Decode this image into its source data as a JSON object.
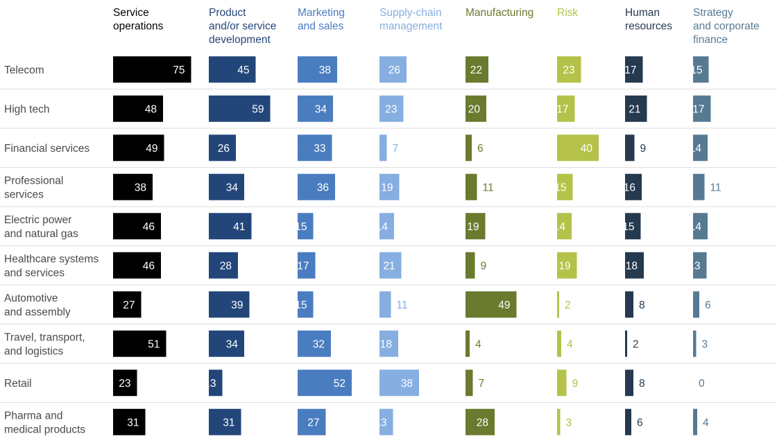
{
  "chart_data": {
    "type": "bar",
    "categories": [
      [
        "Telecom"
      ],
      [
        "High tech"
      ],
      [
        "Financial services"
      ],
      [
        "Professional",
        "services"
      ],
      [
        "Electric power",
        "and natural gas"
      ],
      [
        "Healthcare systems",
        "and services"
      ],
      [
        "Automotive",
        "and assembly"
      ],
      [
        "Travel, transport,",
        "and logistics"
      ],
      [
        "Retail"
      ],
      [
        "Pharma and",
        "medical products"
      ]
    ],
    "series": [
      {
        "name": [
          "Service",
          "operations"
        ],
        "color": "#000000",
        "label_color": "#000000",
        "values": [
          75,
          48,
          49,
          38,
          46,
          46,
          27,
          51,
          23,
          31
        ]
      },
      {
        "name": [
          "Product",
          "and/or service",
          "development"
        ],
        "color": "#23467a",
        "label_color": "#23467a",
        "values": [
          45,
          59,
          26,
          34,
          41,
          28,
          39,
          34,
          13,
          31
        ]
      },
      {
        "name": [
          "Marketing",
          "and sales"
        ],
        "color": "#4a7cc0",
        "label_color": "#4a7cc0",
        "values": [
          38,
          34,
          33,
          36,
          15,
          17,
          15,
          32,
          52,
          27
        ]
      },
      {
        "name": [
          "Supply-chain",
          "management"
        ],
        "color": "#86aee0",
        "label_color": "#86aee0",
        "values": [
          26,
          23,
          7,
          19,
          14,
          21,
          11,
          18,
          38,
          13
        ]
      },
      {
        "name": [
          "Manufacturing"
        ],
        "color": "#6a7a2e",
        "label_color": "#6a7a2e",
        "values": [
          22,
          20,
          6,
          11,
          19,
          9,
          49,
          4,
          7,
          28
        ]
      },
      {
        "name": [
          "Risk"
        ],
        "color": "#b4c24a",
        "label_color": "#b4c24a",
        "values": [
          23,
          17,
          40,
          15,
          14,
          19,
          2,
          4,
          9,
          3
        ]
      },
      {
        "name": [
          "Human",
          "resources"
        ],
        "color": "#25394f",
        "label_color": "#25394f",
        "values": [
          17,
          21,
          9,
          16,
          15,
          18,
          8,
          2,
          8,
          6
        ]
      },
      {
        "name": [
          "Strategy",
          "and corporate",
          "finance"
        ],
        "color": "#577a93",
        "label_color": "#577a93",
        "values": [
          15,
          17,
          14,
          11,
          14,
          13,
          6,
          3,
          0,
          4
        ]
      }
    ],
    "grid": false,
    "legend": "none"
  }
}
